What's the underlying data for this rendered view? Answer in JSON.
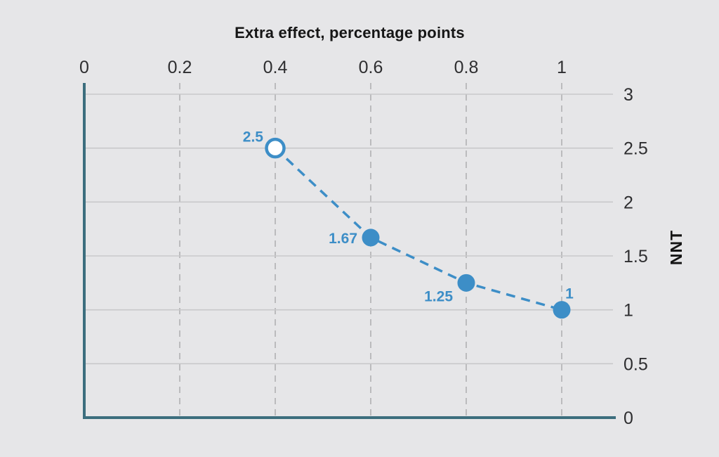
{
  "chart_data": {
    "type": "line",
    "title": "Extra effect, percentage points",
    "xlabel": "Extra effect, percentage points",
    "ylabel": "NNT",
    "x_axis_side": "top",
    "y_axis_side": "right",
    "xlim": [
      0,
      1.11
    ],
    "ylim": [
      0,
      3
    ],
    "x_ticks": {
      "values": [
        0,
        0.2,
        0.4,
        0.6,
        0.8,
        1
      ],
      "labels": [
        "0",
        "0.2",
        "0.4",
        "0.6",
        "0.8",
        "1"
      ]
    },
    "y_ticks": {
      "values": [
        0,
        0.5,
        1,
        1.5,
        2,
        2.5,
        3
      ],
      "labels": [
        "0",
        "0.5",
        "1",
        "1.5",
        "2",
        "2.5",
        "3"
      ]
    },
    "grid": {
      "horizontal": "solid",
      "vertical": "dashed"
    },
    "legend": "none",
    "series": [
      {
        "name": "NNT",
        "line_style": "dashed",
        "color": "#3d8ec7",
        "points": [
          {
            "x": 0.4,
            "y": 2.5,
            "label": "2.5",
            "marker": "open"
          },
          {
            "x": 0.6,
            "y": 1.67,
            "label": "1.67",
            "marker": "filled"
          },
          {
            "x": 0.8,
            "y": 1.25,
            "label": "1.25",
            "marker": "filled"
          },
          {
            "x": 1,
            "y": 1,
            "label": "1",
            "marker": "filled"
          }
        ]
      }
    ],
    "colors": {
      "series": "#3d8ec7",
      "axis": "#3c6e7e",
      "background": "#e6e6e8",
      "grid_solid": "#c8c8ca",
      "grid_dashed": "#bbbbbd",
      "tick_text": "#2e2e30",
      "title_text": "#161616"
    }
  }
}
